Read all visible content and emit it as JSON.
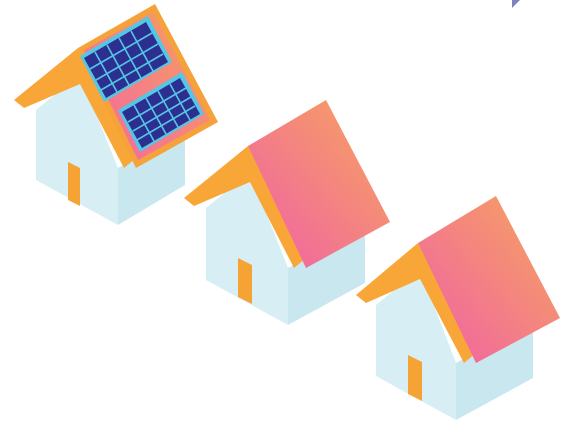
{
  "scene": {
    "description_visible_text": "",
    "houses": [
      {
        "id": "house-1",
        "has_solar_panels": true
      },
      {
        "id": "house-2",
        "has_solar_panels": false
      },
      {
        "id": "house-3",
        "has_solar_panels": false
      }
    ],
    "colors": {
      "background": "#ffffff",
      "wall_light": "#d7eef4",
      "wall_shade": "#c2e3ea",
      "roof_edge_orange": "#f8a637",
      "roof_gradient_start": "#f264a6",
      "roof_gradient_end": "#f8a35a",
      "door_orange": "#f6a335",
      "panel_frame": "#55c7e6",
      "panel_cell": "#2c2f8f",
      "panel_border": "#f07ab0"
    }
  }
}
